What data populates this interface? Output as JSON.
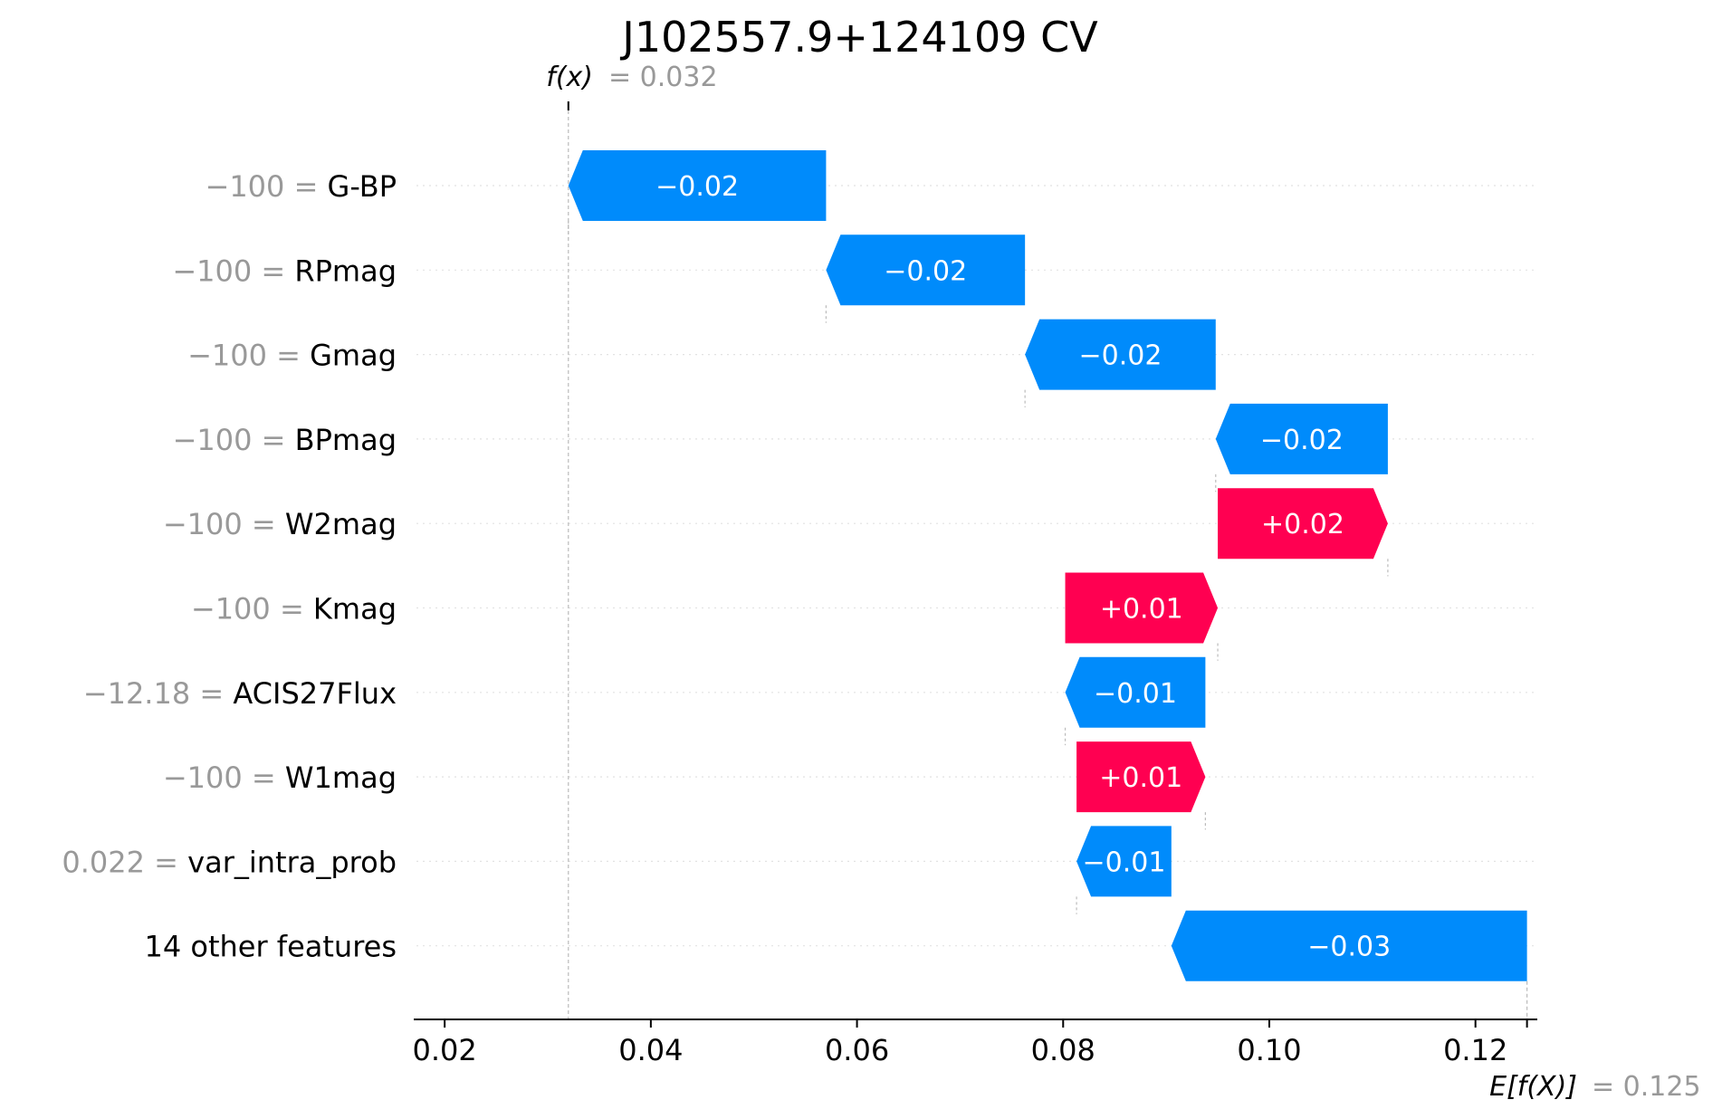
{
  "chart_data": {
    "type": "bar",
    "subtype": "shap-waterfall",
    "title": "J102557.9+124109 CV",
    "fx_label": "f(x)",
    "fx_value": 0.032,
    "fx_display": "= 0.032",
    "efx_label": "E[f(X)]",
    "efx_value": 0.125,
    "efx_display": "= 0.125",
    "xlim": [
      0.017,
      0.126
    ],
    "xticks": [
      0.02,
      0.04,
      0.06,
      0.08,
      0.1,
      0.12
    ],
    "xtick_labels": [
      "0.02",
      "0.04",
      "0.06",
      "0.08",
      "0.10",
      "0.12"
    ],
    "colors": {
      "positive": "#ff0051",
      "negative": "#008bfb",
      "value_text": "#999999"
    },
    "features": [
      {
        "value": "−100",
        "name": "G-BP",
        "start": 0.057,
        "end": 0.032,
        "label": "−0.02"
      },
      {
        "value": "−100",
        "name": "RPmag",
        "start": 0.0763,
        "end": 0.057,
        "label": "−0.02"
      },
      {
        "value": "−100",
        "name": "Gmag",
        "start": 0.0948,
        "end": 0.0763,
        "label": "−0.02"
      },
      {
        "value": "−100",
        "name": "BPmag",
        "start": 0.1115,
        "end": 0.0948,
        "label": "−0.02"
      },
      {
        "value": "−100",
        "name": "W2mag",
        "start": 0.095,
        "end": 0.1115,
        "label": "+0.02"
      },
      {
        "value": "−100",
        "name": "Kmag",
        "start": 0.0802,
        "end": 0.095,
        "label": "+0.01"
      },
      {
        "value": "−12.18",
        "name": "ACIS27Flux",
        "start": 0.0938,
        "end": 0.0802,
        "label": "−0.01"
      },
      {
        "value": "−100",
        "name": "W1mag",
        "start": 0.0813,
        "end": 0.0938,
        "label": "+0.01"
      },
      {
        "value": "0.022",
        "name": "var_intra_prob",
        "start": 0.0905,
        "end": 0.0813,
        "label": "−0.01"
      },
      {
        "value": null,
        "name": "14 other features",
        "start": 0.125,
        "end": 0.0905,
        "label": "−0.03"
      }
    ]
  }
}
